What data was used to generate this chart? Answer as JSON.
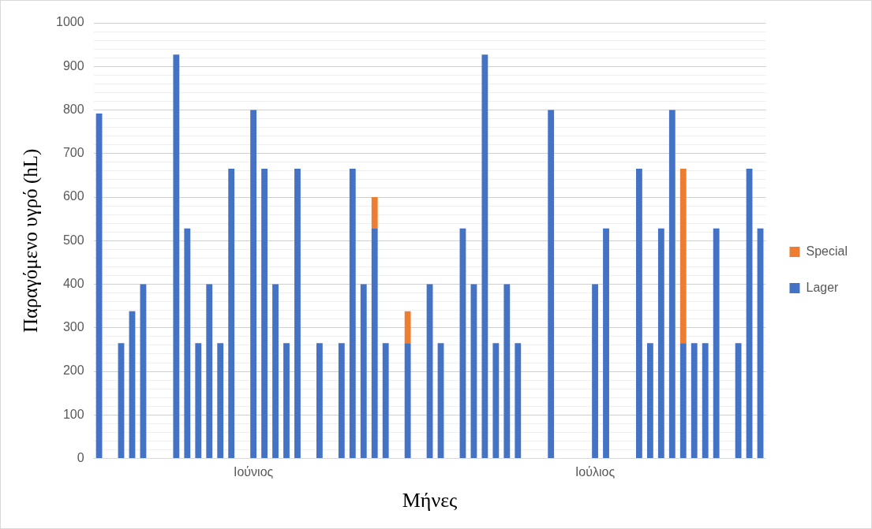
{
  "chart_data": {
    "type": "bar",
    "stacked": true,
    "xlabel": "Μήνες",
    "ylabel": "Παραγόμενο υγρό (hL)",
    "categories": [
      null,
      null,
      null,
      null,
      null,
      null,
      null,
      null,
      null,
      null,
      null,
      null,
      null,
      null,
      "Ιούνιος",
      null,
      null,
      null,
      null,
      null,
      null,
      null,
      null,
      null,
      null,
      null,
      null,
      null,
      null,
      null,
      null,
      null,
      null,
      null,
      null,
      null,
      null,
      null,
      null,
      null,
      null,
      null,
      null,
      null,
      null,
      "Ιούλιος",
      null,
      null,
      null,
      null,
      null,
      null,
      null,
      null,
      null,
      null,
      null,
      null,
      null,
      null,
      null
    ],
    "series": [
      {
        "name": "Lager",
        "color": "#4472c4",
        "values": [
          792,
          null,
          265,
          338,
          400,
          null,
          null,
          927,
          528,
          265,
          400,
          265,
          665,
          null,
          800,
          665,
          400,
          265,
          665,
          null,
          265,
          null,
          265,
          665,
          400,
          528,
          265,
          null,
          265,
          null,
          400,
          265,
          null,
          528,
          400,
          927,
          265,
          400,
          265,
          null,
          null,
          800,
          null,
          null,
          null,
          400,
          528,
          null,
          null,
          665,
          265,
          528,
          800,
          265,
          265,
          265,
          528,
          null,
          265,
          665,
          528
        ]
      },
      {
        "name": "Special",
        "color": "#ed7d31",
        "values": [
          null,
          null,
          null,
          null,
          null,
          null,
          null,
          null,
          null,
          null,
          null,
          null,
          null,
          null,
          null,
          null,
          null,
          null,
          null,
          null,
          null,
          null,
          null,
          null,
          null,
          72,
          null,
          null,
          73,
          null,
          null,
          null,
          null,
          null,
          null,
          null,
          null,
          null,
          null,
          null,
          null,
          null,
          null,
          null,
          null,
          null,
          null,
          null,
          null,
          null,
          null,
          null,
          null,
          400,
          null,
          null,
          null,
          null,
          null,
          null,
          null
        ]
      }
    ],
    "ylim": [
      0,
      1000
    ],
    "yticks": [
      0,
      {
        "value": 20,
        "label": null
      },
      {
        "value": 40,
        "label": null
      },
      {
        "value": 60,
        "label": null
      },
      {
        "value": 80,
        "label": null
      },
      100,
      {
        "value": 120,
        "label": null
      },
      {
        "value": 140,
        "label": null
      },
      {
        "value": 160,
        "label": null
      },
      {
        "value": 180,
        "label": null
      },
      200,
      {
        "value": 220,
        "label": null
      },
      {
        "value": 240,
        "label": null
      },
      {
        "value": 260,
        "label": null
      },
      {
        "value": 280,
        "label": null
      },
      300,
      {
        "value": 320,
        "label": null
      },
      {
        "value": 340,
        "label": null
      },
      {
        "value": 360,
        "label": null
      },
      {
        "value": 380,
        "label": null
      },
      400,
      {
        "value": 420,
        "label": null
      },
      {
        "value": 440,
        "label": null
      },
      {
        "value": 460,
        "label": null
      },
      {
        "value": 480,
        "label": null
      },
      500,
      {
        "value": 520,
        "label": null
      },
      {
        "value": 540,
        "label": null
      },
      {
        "value": 560,
        "label": null
      },
      {
        "value": 580,
        "label": null
      },
      600,
      {
        "value": 620,
        "label": null
      },
      {
        "value": 640,
        "label": null
      },
      {
        "value": 660,
        "label": null
      },
      {
        "value": 680,
        "label": null
      },
      700,
      {
        "value": 720,
        "label": null
      },
      {
        "value": 740,
        "label": null
      },
      {
        "value": 760,
        "label": null
      },
      {
        "value": 780,
        "label": null
      },
      800,
      {
        "value": 820,
        "label": null
      },
      {
        "value": 840,
        "label": null
      },
      {
        "value": 860,
        "label": null
      },
      {
        "value": 880,
        "label": null
      },
      900,
      {
        "value": 920,
        "label": null
      },
      {
        "value": 940,
        "label": null
      },
      {
        "value": 960,
        "label": null
      },
      {
        "value": 980,
        "label": null
      },
      1000
    ],
    "grid": "y",
    "legend": "right"
  }
}
